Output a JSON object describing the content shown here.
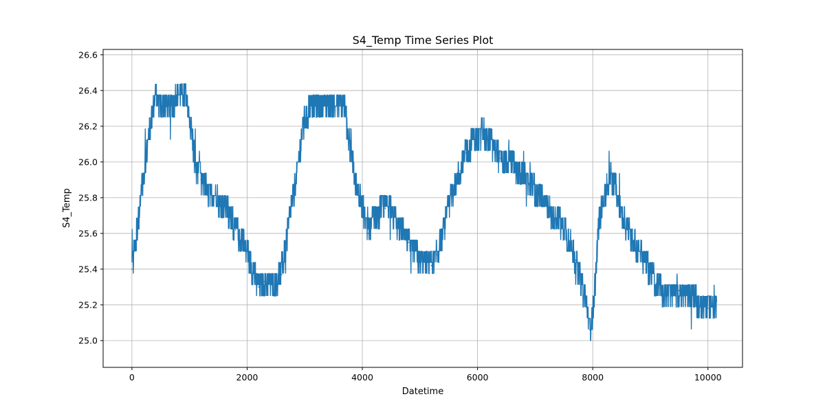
{
  "chart_data": {
    "type": "line",
    "title": "S4_Temp Time Series Plot",
    "xlabel": "Datetime",
    "ylabel": "S4_Temp",
    "xlim": [
      -500,
      10600
    ],
    "ylim": [
      24.85,
      26.63
    ],
    "xticks": [
      0,
      2000,
      4000,
      6000,
      8000,
      10000
    ],
    "xtick_labels": [
      "0",
      "2000",
      "4000",
      "6000",
      "8000",
      "10000"
    ],
    "yticks": [
      25.0,
      25.2,
      25.4,
      25.6,
      25.8,
      26.0,
      26.2,
      26.4,
      26.6
    ],
    "ytick_labels": [
      "25.0",
      "25.2",
      "25.4",
      "25.6",
      "25.8",
      "26.0",
      "26.2",
      "26.4",
      "26.6"
    ],
    "grid": true,
    "series": [
      {
        "color": "#1f77b4",
        "x": [
          0,
          100,
          200,
          300,
          400,
          500,
          600,
          700,
          800,
          900,
          1000,
          1100,
          1200,
          1300,
          1400,
          1500,
          1600,
          1700,
          1800,
          1900,
          2000,
          2100,
          2200,
          2300,
          2400,
          2500,
          2600,
          2700,
          2800,
          2900,
          3000,
          3100,
          3200,
          3300,
          3400,
          3500,
          3600,
          3700,
          3800,
          3900,
          4000,
          4100,
          4200,
          4300,
          4400,
          4500,
          4600,
          4700,
          4800,
          4900,
          5000,
          5100,
          5200,
          5300,
          5400,
          5500,
          5600,
          5700,
          5800,
          5900,
          6000,
          6100,
          6200,
          6300,
          6400,
          6500,
          6600,
          6700,
          6800,
          6900,
          7000,
          7100,
          7200,
          7300,
          7400,
          7500,
          7600,
          7700,
          7800,
          7900,
          7950,
          8000,
          8050,
          8100,
          8200,
          8300,
          8400,
          8500,
          8600,
          8700,
          8800,
          8900,
          9000,
          9100,
          9200,
          9300,
          9400,
          9500,
          9600,
          9700,
          9800,
          9900,
          10000,
          10100,
          10150
        ],
        "y": [
          25.4,
          25.65,
          25.92,
          26.15,
          26.35,
          26.33,
          26.31,
          26.33,
          26.36,
          26.4,
          26.25,
          25.98,
          25.9,
          25.84,
          25.8,
          25.78,
          25.76,
          25.7,
          25.62,
          25.56,
          25.5,
          25.38,
          25.3,
          25.33,
          25.32,
          25.33,
          25.37,
          25.6,
          25.8,
          26.0,
          26.25,
          26.3,
          26.32,
          26.31,
          26.33,
          26.34,
          26.33,
          26.28,
          26.05,
          25.85,
          25.75,
          25.6,
          25.68,
          25.72,
          25.74,
          25.72,
          25.65,
          25.6,
          25.55,
          25.5,
          25.45,
          25.43,
          25.42,
          25.48,
          25.6,
          25.75,
          25.85,
          25.95,
          26.05,
          26.1,
          26.15,
          26.16,
          26.14,
          26.05,
          26.02,
          26.0,
          25.98,
          25.96,
          25.92,
          25.88,
          25.84,
          25.8,
          25.75,
          25.7,
          25.68,
          25.62,
          25.55,
          25.45,
          25.32,
          25.18,
          25.06,
          25.15,
          25.35,
          25.65,
          25.8,
          25.92,
          25.85,
          25.72,
          25.62,
          25.55,
          25.5,
          25.45,
          25.38,
          25.32,
          25.28,
          25.28,
          25.27,
          25.28,
          25.26,
          25.22,
          25.22,
          25.2,
          25.18,
          25.18,
          25.22
        ]
      }
    ]
  }
}
